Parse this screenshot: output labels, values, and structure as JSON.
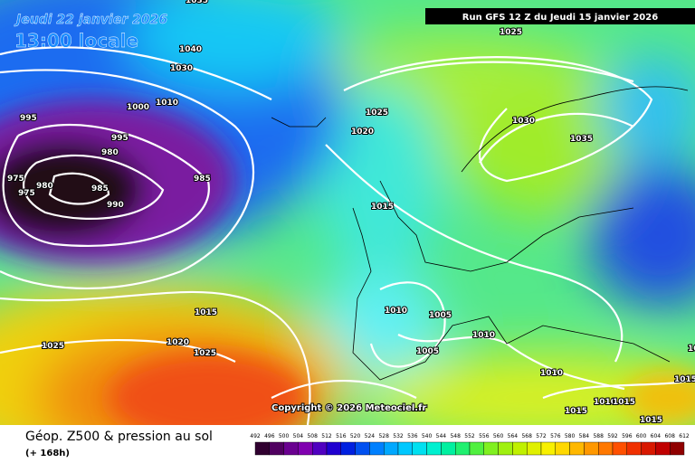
{
  "header": {
    "date": "Jeudi 22 janvier 2026",
    "time": "13:00 locale",
    "run": "Run GFS 12 Z du Jeudi 15 janvier 2026"
  },
  "copyright": "Copyright © 2026 Meteociel.fr",
  "footer": {
    "title": "Géop. Z500 & pression au sol",
    "lead": "(+ 168h)"
  },
  "colorbar": {
    "ticks": [
      492,
      496,
      500,
      504,
      508,
      512,
      516,
      520,
      524,
      528,
      532,
      536,
      540,
      544,
      548,
      552,
      556,
      560,
      564,
      568,
      572,
      576,
      580,
      584,
      588,
      592,
      596,
      600,
      604,
      608,
      612
    ]
  },
  "isobars": [
    "1035",
    "1025",
    "1040",
    "1030",
    "1000",
    "1010",
    "995",
    "995",
    "980",
    "975",
    "975",
    "980",
    "985",
    "985",
    "990",
    "1025",
    "1020",
    "1030",
    "1035",
    "1015",
    "1015",
    "1025",
    "1020",
    "1025",
    "1010",
    "1005",
    "1005",
    "1010",
    "1010",
    "1010",
    "1015",
    "1015",
    "1015",
    "1015",
    "1025"
  ]
}
